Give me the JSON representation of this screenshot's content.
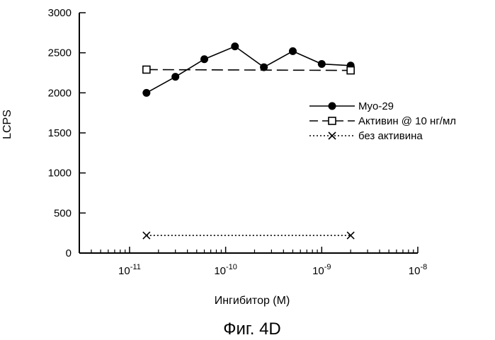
{
  "figure": {
    "caption": "Фиг. 4D"
  },
  "chart_data": {
    "type": "line",
    "xlabel": "Ингибитор (М)",
    "ylabel": "LCPS",
    "x_scale": "log",
    "xlim": [
      3e-12,
      1e-08
    ],
    "ylim": [
      0,
      3000
    ],
    "x_ticks": [
      {
        "value": 1e-11,
        "base": "10",
        "exp": "-11"
      },
      {
        "value": 1e-10,
        "base": "10",
        "exp": "-10"
      },
      {
        "value": 1e-09,
        "base": "10",
        "exp": "-9"
      },
      {
        "value": 1e-08,
        "base": "10",
        "exp": "-8"
      }
    ],
    "y_ticks": [
      0,
      500,
      1000,
      1500,
      2000,
      2500,
      3000
    ],
    "grid": false,
    "legend_position": "right",
    "series": [
      {
        "name": "Myo-29",
        "marker": "filled-circle",
        "line": "solid",
        "x": [
          1.5e-11,
          3e-11,
          6e-11,
          1.25e-10,
          2.5e-10,
          5e-10,
          1e-09,
          2e-09
        ],
        "y": [
          2000,
          2200,
          2420,
          2580,
          2320,
          2520,
          2360,
          2340
        ]
      },
      {
        "name": "Активин @ 10 нг/мл",
        "marker": "open-square",
        "line": "dashed",
        "x": [
          1.5e-11,
          2e-09
        ],
        "y": [
          2290,
          2280
        ]
      },
      {
        "name": "без активина",
        "marker": "x",
        "line": "dotted",
        "x": [
          1.5e-11,
          2e-09
        ],
        "y": [
          220,
          220
        ]
      }
    ]
  }
}
